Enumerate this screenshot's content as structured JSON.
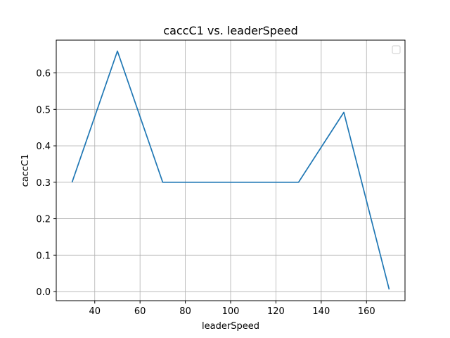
{
  "chart_data": {
    "type": "line",
    "title": "caccC1 vs. leaderSpeed",
    "xlabel": "leaderSpeed",
    "ylabel": "caccC1",
    "xlim": [
      23,
      177
    ],
    "ylim": [
      -0.025,
      0.69
    ],
    "xticks": [
      40,
      60,
      80,
      100,
      120,
      140,
      160
    ],
    "yticks": [
      0.0,
      0.1,
      0.2,
      0.3,
      0.4,
      0.5,
      0.6
    ],
    "ytick_labels": [
      "0.0",
      "0.1",
      "0.2",
      "0.3",
      "0.4",
      "0.5",
      "0.6"
    ],
    "grid": true,
    "legend": "top-right",
    "series": [
      {
        "color": "#1f77b4",
        "x": [
          30,
          50,
          70,
          90,
          110,
          130,
          150,
          170
        ],
        "y": [
          0.3,
          0.66,
          0.3,
          0.3,
          0.3,
          0.3,
          0.492,
          0.006
        ]
      }
    ]
  }
}
